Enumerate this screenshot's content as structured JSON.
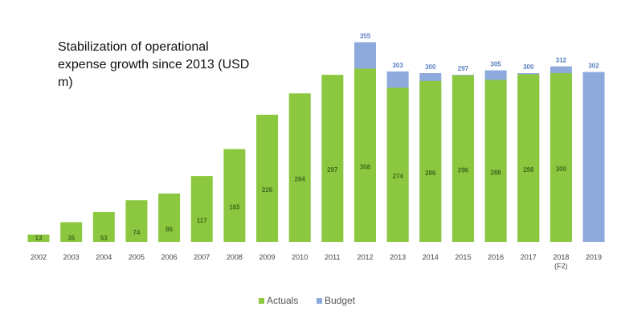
{
  "chart_data": {
    "type": "bar",
    "title": "Stabilization of operational expense growth since 2013 (USD m)",
    "categories": [
      "2002",
      "2003",
      "2004",
      "2005",
      "2006",
      "2007",
      "2008",
      "2009",
      "2010",
      "2011",
      "2012",
      "2013",
      "2014",
      "2015",
      "2016",
      "2017",
      "2018 (F2)",
      "2019"
    ],
    "series": [
      {
        "name": "Actuals",
        "color": "#8cc83f",
        "values": [
          13,
          35,
          53,
          74,
          86,
          117,
          165,
          226,
          264,
          297,
          308,
          274,
          286,
          296,
          288,
          298,
          300,
          null
        ]
      },
      {
        "name": "Budget",
        "color": "#8eaadc",
        "values": [
          null,
          null,
          null,
          null,
          null,
          null,
          null,
          null,
          null,
          null,
          355,
          303,
          300,
          297,
          305,
          300,
          312,
          302
        ]
      }
    ],
    "ylim": [
      0,
      430
    ],
    "legend": "bottom"
  }
}
